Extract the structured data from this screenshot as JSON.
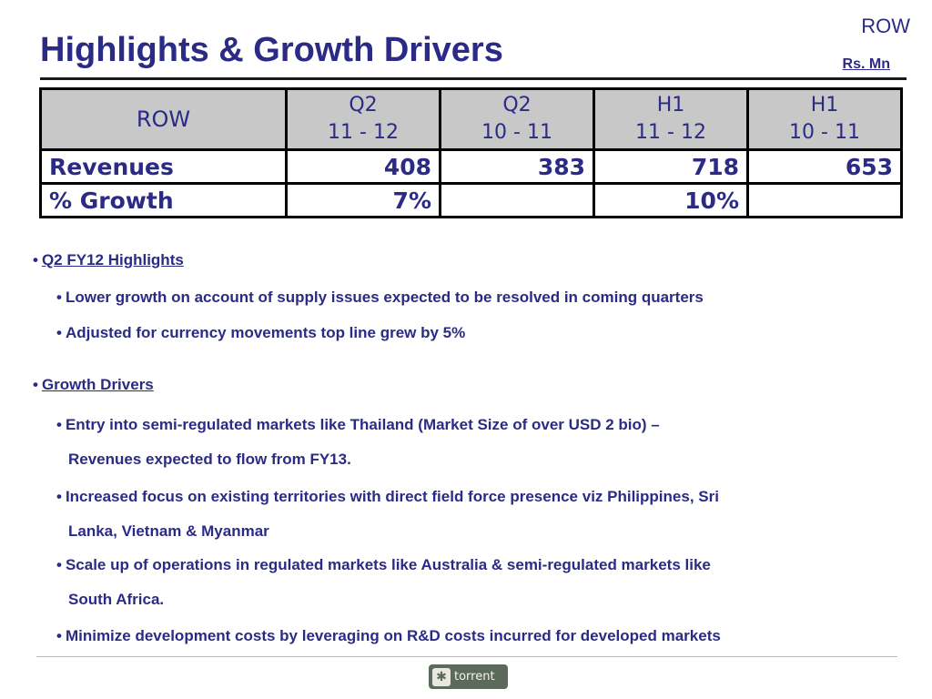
{
  "corner_label": "ROW",
  "title": "Highlights & Growth Drivers",
  "units": "Rs.  Mn",
  "table": {
    "corner_header": "ROW",
    "columns": [
      {
        "line1": "Q2",
        "line2": "11 - 12"
      },
      {
        "line1": "Q2",
        "line2": "10 - 11"
      },
      {
        "line1": "H1",
        "line2": "11 - 12"
      },
      {
        "line1": "H1",
        "line2": "10 - 11"
      }
    ],
    "rows": [
      {
        "label": "Revenues",
        "cells": [
          "408",
          "383",
          "718",
          "653"
        ]
      },
      {
        "label": "% Growth",
        "cells": [
          "7%",
          "",
          "10%",
          ""
        ]
      }
    ]
  },
  "sections": [
    {
      "heading": "Q2 FY12 Highlights",
      "items": [
        [
          "Lower growth on account of supply issues expected to be resolved in coming quarters"
        ],
        [
          "Adjusted for currency movements top line grew by 5%"
        ]
      ]
    },
    {
      "heading": "Growth Drivers",
      "items": [
        [
          "Entry into semi-regulated markets like Thailand (Market Size of over USD 2 bio) –",
          "Revenues expected to flow from FY13."
        ],
        [
          "Increased focus on existing territories with direct field force presence viz Philippines, Sri",
          "Lanka, Vietnam & Myanmar"
        ],
        [
          "Scale up of operations in regulated markets like Australia & semi-regulated markets like",
          "South Africa."
        ],
        [
          "Minimize development costs by leveraging on R&D costs incurred for developed markets"
        ]
      ]
    }
  ],
  "bullet_char": "•",
  "logo": {
    "text": "torrent",
    "mark": "✱",
    "icon": "torrent-logo-icon"
  }
}
